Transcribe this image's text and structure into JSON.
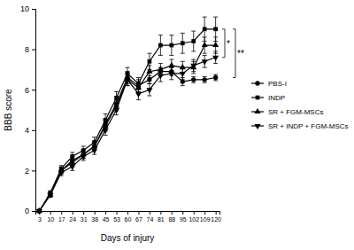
{
  "chart_data": {
    "type": "line",
    "x_label": "Days of injury",
    "y_label": "BBB score",
    "categories": [
      "3",
      "10",
      "17",
      "24",
      "31",
      "38",
      "45",
      "53",
      "60",
      "67",
      "74",
      "81",
      "88",
      "95",
      "102",
      "109",
      "120"
    ],
    "ylim": [
      0,
      10
    ],
    "yticks": [
      0,
      2,
      4,
      6,
      8,
      10
    ],
    "legend": "right",
    "series": [
      {
        "name": "PBS-I",
        "color": "#000000",
        "marker": "circle",
        "values": [
          0,
          0.8,
          2.0,
          2.5,
          2.8,
          3.2,
          4.3,
          5.3,
          6.6,
          6.2,
          6.5,
          6.9,
          6.9,
          6.4,
          6.5,
          6.5,
          6.6
        ],
        "errors": [
          0,
          0.1,
          0.15,
          0.2,
          0.2,
          0.2,
          0.25,
          0.25,
          0.3,
          0.3,
          0.2,
          0.2,
          0.2,
          0.2,
          0.15,
          0.15,
          0.15
        ]
      },
      {
        "name": "INDP",
        "color": "#000000",
        "marker": "square",
        "values": [
          0,
          0.9,
          2.1,
          2.7,
          3.0,
          3.4,
          4.5,
          5.6,
          6.8,
          6.3,
          7.4,
          8.2,
          8.2,
          8.3,
          8.4,
          9.0,
          9.0
        ],
        "errors": [
          0,
          0.1,
          0.15,
          0.2,
          0.2,
          0.25,
          0.3,
          0.3,
          0.3,
          0.3,
          0.4,
          0.5,
          0.5,
          0.5,
          0.5,
          0.6,
          0.6
        ]
      },
      {
        "name": "SR + FGM-MSCs",
        "color": "#000000",
        "marker": "triangle-up",
        "values": [
          0,
          0.8,
          2.0,
          2.4,
          2.8,
          3.2,
          4.2,
          5.2,
          6.5,
          6.1,
          6.9,
          7.0,
          7.2,
          7.1,
          7.1,
          8.2,
          8.2
        ],
        "errors": [
          0,
          0.1,
          0.15,
          0.2,
          0.2,
          0.2,
          0.25,
          0.25,
          0.3,
          0.3,
          0.3,
          0.3,
          0.3,
          0.3,
          0.3,
          0.4,
          0.4
        ]
      },
      {
        "name": "SR + INDP + FGM-MSCs",
        "color": "#000000",
        "marker": "triangle-down",
        "values": [
          0,
          0.8,
          1.9,
          2.2,
          2.7,
          3.0,
          4.0,
          5.0,
          6.5,
          5.8,
          6.0,
          6.7,
          6.8,
          6.8,
          7.2,
          7.4,
          7.6
        ],
        "errors": [
          0,
          0.1,
          0.15,
          0.2,
          0.2,
          0.2,
          0.25,
          0.25,
          0.3,
          0.3,
          0.3,
          0.3,
          0.3,
          0.3,
          0.3,
          0.3,
          0.3
        ]
      }
    ],
    "annotations": [
      {
        "text": "*",
        "y1": 9.0,
        "y2": 7.6
      },
      {
        "text": "**",
        "y1": 9.0,
        "y2": 6.6
      }
    ]
  }
}
